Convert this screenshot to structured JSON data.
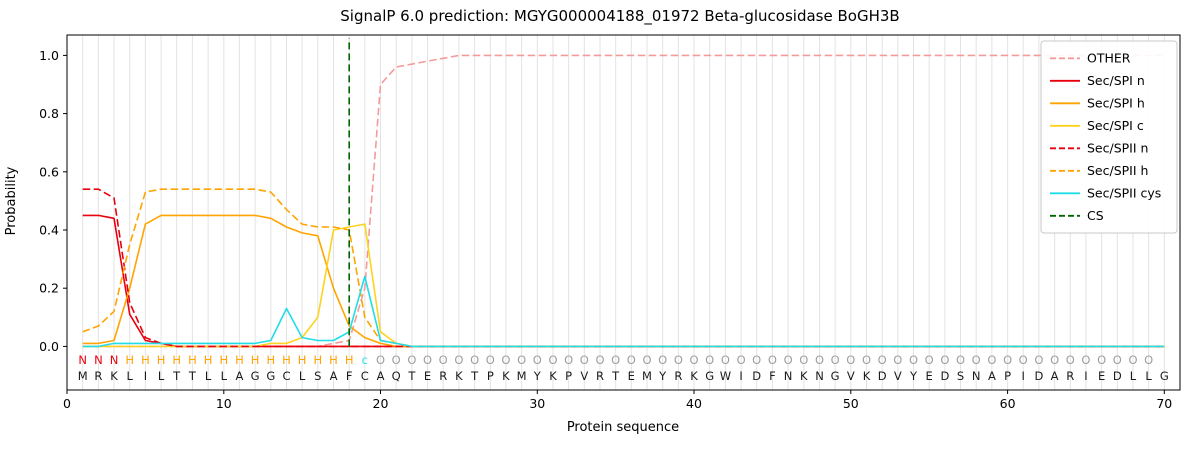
{
  "chart_data": {
    "type": "line",
    "title": "SignalP 6.0 prediction: MGYG000004188_01972 Beta-glucosidase BoGH3B",
    "xlabel": "Protein sequence",
    "ylabel": "Probability",
    "xlim": [
      0,
      71
    ],
    "ylim": [
      -0.15,
      1.07
    ],
    "xticks": [
      0,
      10,
      20,
      30,
      40,
      50,
      60,
      70
    ],
    "yticks": [
      "0.0",
      "0.2",
      "0.4",
      "0.6",
      "0.8",
      "1.0"
    ],
    "grid": "vertical-per-residue",
    "legend_position": "upper right",
    "n_positions": 70,
    "series": [
      {
        "name": "OTHER",
        "color": "#f49a9a",
        "dash": true,
        "values": [
          0,
          0,
          0,
          0,
          0,
          0,
          0,
          0,
          0,
          0,
          0,
          0,
          0,
          0,
          0,
          0,
          0.01,
          0.02,
          0.2,
          0.9,
          0.96,
          0.97,
          0.98,
          0.99,
          1,
          1,
          1,
          1,
          1,
          1,
          1,
          1,
          1,
          1,
          1,
          1,
          1,
          1,
          1,
          1,
          1,
          1,
          1,
          1,
          1,
          1,
          1,
          1,
          1,
          1,
          1,
          1,
          1,
          1,
          1,
          1,
          1,
          1,
          1,
          1,
          1,
          1,
          1,
          1,
          1,
          1,
          1,
          1,
          1,
          1
        ]
      },
      {
        "name": "Sec/SPI n",
        "color": "#e8000d",
        "dash": false,
        "values": [
          0.45,
          0.45,
          0.44,
          0.11,
          0.02,
          0.01,
          0,
          0,
          0,
          0,
          0,
          0,
          0,
          0,
          0,
          0,
          0,
          0,
          0,
          0,
          0,
          0,
          0,
          0,
          0,
          0,
          0,
          0,
          0,
          0,
          0,
          0,
          0,
          0,
          0,
          0,
          0,
          0,
          0,
          0,
          0,
          0,
          0,
          0,
          0,
          0,
          0,
          0,
          0,
          0,
          0,
          0,
          0,
          0,
          0,
          0,
          0,
          0,
          0,
          0,
          0,
          0,
          0,
          0,
          0,
          0,
          0,
          0,
          0,
          0
        ]
      },
      {
        "name": "Sec/SPI h",
        "color": "#ffa400",
        "dash": false,
        "values": [
          0.01,
          0.01,
          0.02,
          0.2,
          0.42,
          0.45,
          0.45,
          0.45,
          0.45,
          0.45,
          0.45,
          0.45,
          0.44,
          0.41,
          0.39,
          0.38,
          0.2,
          0.07,
          0.03,
          0.01,
          0,
          0,
          0,
          0,
          0,
          0,
          0,
          0,
          0,
          0,
          0,
          0,
          0,
          0,
          0,
          0,
          0,
          0,
          0,
          0,
          0,
          0,
          0,
          0,
          0,
          0,
          0,
          0,
          0,
          0,
          0,
          0,
          0,
          0,
          0,
          0,
          0,
          0,
          0,
          0,
          0,
          0,
          0,
          0,
          0,
          0,
          0,
          0,
          0,
          0
        ]
      },
      {
        "name": "Sec/SPI c",
        "color": "#ffd21f",
        "dash": false,
        "values": [
          0,
          0,
          0,
          0,
          0,
          0,
          0,
          0,
          0,
          0,
          0,
          0,
          0.01,
          0.01,
          0.03,
          0.1,
          0.4,
          0.41,
          0.42,
          0.05,
          0.01,
          0,
          0,
          0,
          0,
          0,
          0,
          0,
          0,
          0,
          0,
          0,
          0,
          0,
          0,
          0,
          0,
          0,
          0,
          0,
          0,
          0,
          0,
          0,
          0,
          0,
          0,
          0,
          0,
          0,
          0,
          0,
          0,
          0,
          0,
          0,
          0,
          0,
          0,
          0,
          0,
          0,
          0,
          0,
          0,
          0,
          0,
          0,
          0,
          0
        ]
      },
      {
        "name": "Sec/SPII n",
        "color": "#e8000d",
        "dash": true,
        "values": [
          0.54,
          0.54,
          0.51,
          0.15,
          0.03,
          0.01,
          0,
          0,
          0,
          0,
          0,
          0,
          0,
          0,
          0,
          0,
          0,
          0,
          0,
          0,
          0,
          0,
          0,
          0,
          0,
          0,
          0,
          0,
          0,
          0,
          0,
          0,
          0,
          0,
          0,
          0,
          0,
          0,
          0,
          0,
          0,
          0,
          0,
          0,
          0,
          0,
          0,
          0,
          0,
          0,
          0,
          0,
          0,
          0,
          0,
          0,
          0,
          0,
          0,
          0,
          0,
          0,
          0,
          0,
          0,
          0,
          0,
          0,
          0,
          0
        ]
      },
      {
        "name": "Sec/SPII h",
        "color": "#ffa400",
        "dash": true,
        "values": [
          0.05,
          0.07,
          0.12,
          0.35,
          0.53,
          0.54,
          0.54,
          0.54,
          0.54,
          0.54,
          0.54,
          0.54,
          0.53,
          0.47,
          0.42,
          0.41,
          0.41,
          0.4,
          0.1,
          0.02,
          0.01,
          0,
          0,
          0,
          0,
          0,
          0,
          0,
          0,
          0,
          0,
          0,
          0,
          0,
          0,
          0,
          0,
          0,
          0,
          0,
          0,
          0,
          0,
          0,
          0,
          0,
          0,
          0,
          0,
          0,
          0,
          0,
          0,
          0,
          0,
          0,
          0,
          0,
          0,
          0,
          0,
          0,
          0,
          0,
          0,
          0,
          0,
          0,
          0,
          0
        ]
      },
      {
        "name": "Sec/SPII cys",
        "color": "#21dde8",
        "dash": false,
        "values": [
          0,
          0,
          0.01,
          0.01,
          0.01,
          0.01,
          0.01,
          0.01,
          0.01,
          0.01,
          0.01,
          0.01,
          0.02,
          0.13,
          0.03,
          0.02,
          0.02,
          0.05,
          0.24,
          0.02,
          0.01,
          0,
          0,
          0,
          0,
          0,
          0,
          0,
          0,
          0,
          0,
          0,
          0,
          0,
          0,
          0,
          0,
          0,
          0,
          0,
          0,
          0,
          0,
          0,
          0,
          0,
          0,
          0,
          0,
          0,
          0,
          0,
          0,
          0,
          0,
          0,
          0,
          0,
          0,
          0,
          0,
          0,
          0,
          0,
          0,
          0,
          0,
          0,
          0,
          0
        ]
      }
    ],
    "cleavage_site": {
      "label": "CS",
      "position": 18,
      "color": "#006400",
      "dash": true
    },
    "sequence": "MRKLILTTLLAGGCLSAFCAQTERKTPKMYKPVRTEMYRKGWIDFNKNGVKDVYEDSNAPIDARIEDLLG",
    "annotation": "NNNHHHHHHHHHHHHHHHcOOOOOOOOOOOOOOOOOOOOOOOOOOOOOOOOOOOOOOOOOOOOOOOOOO",
    "annotation_colors": {
      "N": "#e8000d",
      "H": "#ffa400",
      "c": "#21dde8",
      "O": "#9e9e9e"
    },
    "sequence_color": "#1a1a1a"
  }
}
